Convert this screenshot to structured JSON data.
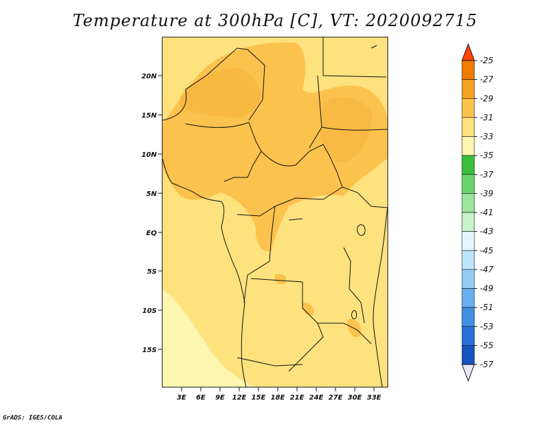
{
  "title": "Temperature at 300hPa [C], VT: 2020092715",
  "credit": "GrADS: IGES/COLA",
  "map": {
    "region": "Central Africa",
    "lon_range": [
      0,
      35
    ],
    "lat_range": [
      -20,
      25
    ],
    "x_ticks": [
      {
        "label": "3E",
        "value": 3
      },
      {
        "label": "6E",
        "value": 6
      },
      {
        "label": "9E",
        "value": 9
      },
      {
        "label": "12E",
        "value": 12
      },
      {
        "label": "15E",
        "value": 15
      },
      {
        "label": "18E",
        "value": 18
      },
      {
        "label": "21E",
        "value": 21
      },
      {
        "label": "24E",
        "value": 24
      },
      {
        "label": "27E",
        "value": 27
      },
      {
        "label": "30E",
        "value": 30
      },
      {
        "label": "33E",
        "value": 33
      }
    ],
    "y_ticks": [
      {
        "label": "20N",
        "value": 20
      },
      {
        "label": "15N",
        "value": 15
      },
      {
        "label": "10N",
        "value": 10
      },
      {
        "label": "5N",
        "value": 5
      },
      {
        "label": "EQ",
        "value": 0
      },
      {
        "label": "5S",
        "value": -5
      },
      {
        "label": "10S",
        "value": -10
      },
      {
        "label": "15S",
        "value": -15
      }
    ]
  },
  "colorbar": {
    "labels": [
      "-25",
      "-27",
      "-29",
      "-31",
      "-33",
      "-35",
      "-37",
      "-39",
      "-41",
      "-43",
      "-45",
      "-47",
      "-49",
      "-51",
      "-53",
      "-55",
      "-57"
    ],
    "colors": [
      "#ff4500",
      "#f07c00",
      "#f5a123",
      "#fbc24e",
      "#fde27e",
      "#fef5b0",
      "#3cbf3c",
      "#6cd46c",
      "#9be69b",
      "#c8f2c8",
      "#e4f6fd",
      "#bde4fa",
      "#93cbf5",
      "#69aeee",
      "#4290e3",
      "#2a6fd6",
      "#1654bf",
      "#0c3b9e",
      "#07107a",
      "#e8e8f8"
    ]
  }
}
